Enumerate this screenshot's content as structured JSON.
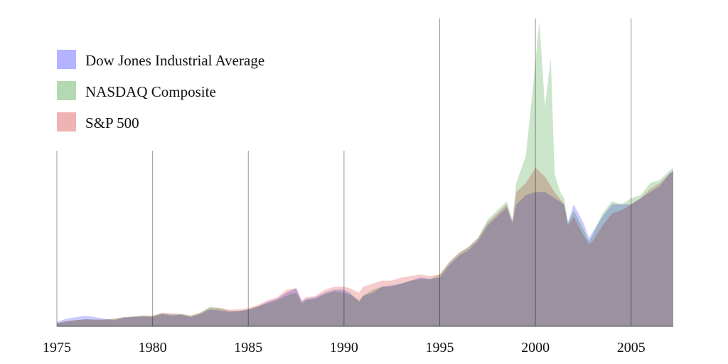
{
  "chart_data": {
    "type": "area",
    "title": "",
    "xlabel": "",
    "ylabel": "",
    "x_ticks": [
      1975,
      1980,
      1985,
      1990,
      1995,
      2000,
      2005
    ],
    "xlim": [
      1975,
      2007.2
    ],
    "ylim": [
      0,
      100
    ],
    "value_unit": "relative index level (no y-axis printed)",
    "legend_position": "top-left",
    "grid": "vertical lines at each labelled year",
    "series": [
      {
        "name": "Dow Jones Industrial Average",
        "color": "#b3b3ff",
        "points": [
          [
            1975,
            1.5
          ],
          [
            1975.5,
            2.5
          ],
          [
            1976,
            3
          ],
          [
            1976.5,
            3.5
          ],
          [
            1977,
            3
          ],
          [
            1977.5,
            2.5
          ],
          [
            1978,
            2
          ],
          [
            1978.5,
            2.8
          ],
          [
            1979,
            3
          ],
          [
            1979.5,
            3.2
          ],
          [
            1980,
            3
          ],
          [
            1980.5,
            4
          ],
          [
            1981,
            3.5
          ],
          [
            1981.5,
            3.8
          ],
          [
            1982,
            3
          ],
          [
            1982.5,
            4
          ],
          [
            1983,
            5.5
          ],
          [
            1983.5,
            5.2
          ],
          [
            1984,
            4.8
          ],
          [
            1984.5,
            5
          ],
          [
            1985,
            5.5
          ],
          [
            1985.5,
            6.5
          ],
          [
            1986,
            8
          ],
          [
            1986.5,
            9
          ],
          [
            1987,
            11
          ],
          [
            1987.5,
            12.5
          ],
          [
            1987.8,
            8
          ],
          [
            1988,
            9
          ],
          [
            1988.5,
            9.5
          ],
          [
            1989,
            11
          ],
          [
            1989.5,
            12
          ],
          [
            1990,
            12
          ],
          [
            1990.3,
            11
          ],
          [
            1990.8,
            8
          ],
          [
            1991,
            10
          ],
          [
            1991.5,
            11
          ],
          [
            1992,
            13
          ],
          [
            1992.5,
            13.5
          ],
          [
            1993,
            14
          ],
          [
            1993.5,
            15
          ],
          [
            1994,
            16
          ],
          [
            1994.5,
            15.5
          ],
          [
            1995,
            16
          ],
          [
            1995.5,
            20
          ],
          [
            1996,
            23
          ],
          [
            1996.5,
            25
          ],
          [
            1997,
            28
          ],
          [
            1997.5,
            33
          ],
          [
            1998,
            36
          ],
          [
            1998.5,
            39
          ],
          [
            1998.8,
            34
          ],
          [
            1999,
            40
          ],
          [
            1999.5,
            43
          ],
          [
            2000,
            44
          ],
          [
            2000.5,
            44
          ],
          [
            2001,
            42
          ],
          [
            2001.5,
            40
          ],
          [
            2001.7,
            34
          ],
          [
            2002,
            40
          ],
          [
            2002.5,
            34
          ],
          [
            2002.8,
            29
          ],
          [
            2003,
            31
          ],
          [
            2003.5,
            36
          ],
          [
            2004,
            40
          ],
          [
            2004.5,
            40
          ],
          [
            2005,
            40
          ],
          [
            2005.5,
            42
          ],
          [
            2006,
            44
          ],
          [
            2006.5,
            46
          ],
          [
            2007,
            50
          ],
          [
            2007.2,
            51
          ]
        ]
      },
      {
        "name": "NASDAQ Composite",
        "color": "#b3d9b3",
        "points": [
          [
            1975,
            1
          ],
          [
            1975.5,
            1.5
          ],
          [
            1976,
            2
          ],
          [
            1976.5,
            2.3
          ],
          [
            1977,
            2.2
          ],
          [
            1977.5,
            2.2
          ],
          [
            1978,
            2.5
          ],
          [
            1978.5,
            3
          ],
          [
            1979,
            3.2
          ],
          [
            1979.5,
            3.5
          ],
          [
            1980,
            3.5
          ],
          [
            1980.5,
            4.2
          ],
          [
            1981,
            4
          ],
          [
            1981.5,
            4
          ],
          [
            1982,
            3.5
          ],
          [
            1982.5,
            4.5
          ],
          [
            1983,
            6.5
          ],
          [
            1983.5,
            6
          ],
          [
            1984,
            5
          ],
          [
            1984.5,
            5
          ],
          [
            1985,
            5.5
          ],
          [
            1985.5,
            6.5
          ],
          [
            1986,
            7.5
          ],
          [
            1986.5,
            8.5
          ],
          [
            1987,
            10
          ],
          [
            1987.5,
            11
          ],
          [
            1987.8,
            7.5
          ],
          [
            1988,
            8.5
          ],
          [
            1988.5,
            9
          ],
          [
            1989,
            10.5
          ],
          [
            1989.5,
            11.5
          ],
          [
            1990,
            11
          ],
          [
            1990.3,
            10.5
          ],
          [
            1990.8,
            8.5
          ],
          [
            1991,
            10
          ],
          [
            1991.5,
            12
          ],
          [
            1992,
            13
          ],
          [
            1992.5,
            13
          ],
          [
            1993,
            14
          ],
          [
            1993.5,
            15
          ],
          [
            1994,
            15.5
          ],
          [
            1994.5,
            15.5
          ],
          [
            1995,
            17
          ],
          [
            1995.5,
            21
          ],
          [
            1996,
            24
          ],
          [
            1996.5,
            26
          ],
          [
            1997,
            29
          ],
          [
            1997.5,
            35
          ],
          [
            1998,
            38
          ],
          [
            1998.5,
            41
          ],
          [
            1998.8,
            35
          ],
          [
            1999,
            47
          ],
          [
            1999.5,
            56
          ],
          [
            1999.9,
            80
          ],
          [
            2000.2,
            100
          ],
          [
            2000.5,
            72
          ],
          [
            2000.8,
            88
          ],
          [
            2001,
            50
          ],
          [
            2001.3,
            44
          ],
          [
            2001.5,
            42
          ],
          [
            2001.7,
            34
          ],
          [
            2002,
            38
          ],
          [
            2002.5,
            32
          ],
          [
            2002.8,
            28
          ],
          [
            2003,
            30
          ],
          [
            2003.5,
            37
          ],
          [
            2004,
            41
          ],
          [
            2004.5,
            40
          ],
          [
            2005,
            42
          ],
          [
            2005.5,
            43
          ],
          [
            2006,
            47
          ],
          [
            2006.5,
            48
          ],
          [
            2007,
            51
          ],
          [
            2007.2,
            52
          ]
        ]
      },
      {
        "name": "S&P 500",
        "color": "#f0b3b3",
        "points": [
          [
            1975,
            1
          ],
          [
            1975.5,
            1.8
          ],
          [
            1976,
            2
          ],
          [
            1976.5,
            2.3
          ],
          [
            1977,
            2.2
          ],
          [
            1977.5,
            2.2
          ],
          [
            1978,
            2.5
          ],
          [
            1978.5,
            3
          ],
          [
            1979,
            3.2
          ],
          [
            1979.5,
            3.5
          ],
          [
            1980,
            3.5
          ],
          [
            1980.5,
            4.5
          ],
          [
            1981,
            4.2
          ],
          [
            1981.5,
            4
          ],
          [
            1982,
            3.5
          ],
          [
            1982.5,
            4.5
          ],
          [
            1983,
            6
          ],
          [
            1983.5,
            6
          ],
          [
            1984,
            5.5
          ],
          [
            1984.5,
            5.5
          ],
          [
            1985,
            6
          ],
          [
            1985.5,
            7
          ],
          [
            1986,
            8.5
          ],
          [
            1986.5,
            9.5
          ],
          [
            1987,
            12
          ],
          [
            1987.5,
            12.5
          ],
          [
            1987.8,
            8.5
          ],
          [
            1988,
            9.5
          ],
          [
            1988.5,
            10
          ],
          [
            1989,
            12
          ],
          [
            1989.5,
            13
          ],
          [
            1990,
            13
          ],
          [
            1990.3,
            12.5
          ],
          [
            1990.8,
            11
          ],
          [
            1991,
            13
          ],
          [
            1991.5,
            14
          ],
          [
            1992,
            15
          ],
          [
            1992.5,
            15
          ],
          [
            1993,
            16
          ],
          [
            1993.5,
            16.5
          ],
          [
            1994,
            17
          ],
          [
            1994.5,
            16.5
          ],
          [
            1995,
            17
          ],
          [
            1995.5,
            21
          ],
          [
            1996,
            24
          ],
          [
            1996.5,
            26
          ],
          [
            1997,
            29
          ],
          [
            1997.5,
            34
          ],
          [
            1998,
            37
          ],
          [
            1998.5,
            40
          ],
          [
            1998.8,
            34
          ],
          [
            1999,
            44
          ],
          [
            1999.5,
            47
          ],
          [
            2000,
            52
          ],
          [
            2000.5,
            49
          ],
          [
            2001,
            44
          ],
          [
            2001.5,
            40
          ],
          [
            2001.7,
            33
          ],
          [
            2002,
            36
          ],
          [
            2002.5,
            30
          ],
          [
            2002.8,
            27
          ],
          [
            2003,
            28
          ],
          [
            2003.5,
            33
          ],
          [
            2004,
            37
          ],
          [
            2004.5,
            38
          ],
          [
            2005,
            40
          ],
          [
            2005.5,
            42
          ],
          [
            2006,
            45
          ],
          [
            2006.5,
            47
          ],
          [
            2007,
            50
          ],
          [
            2007.2,
            51
          ]
        ]
      }
    ]
  }
}
